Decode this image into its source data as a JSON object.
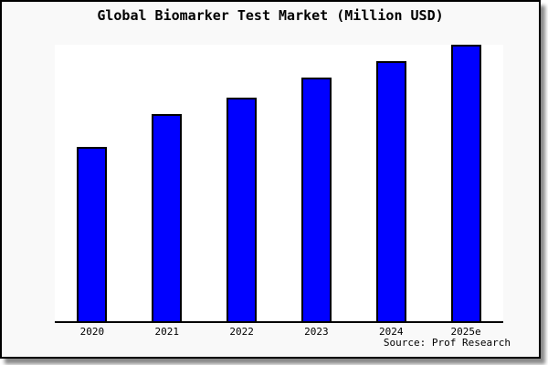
{
  "title": "Global Biomarker Test Market (Million USD)",
  "source": "Source: Prof Research",
  "colors": {
    "bar_fill": "#0000ff",
    "bar_border": "#000000",
    "figure_background": "#f9f9f9",
    "plot_background": "#ffffff",
    "frame": "#000000",
    "text": "#000000"
  },
  "chart_data": {
    "type": "bar",
    "title": "Global Biomarker Test Market (Million USD)",
    "categories": [
      "2020",
      "2021",
      "2022",
      "2023",
      "2024",
      "2025e"
    ],
    "values": [
      63,
      75,
      81,
      88,
      94,
      100
    ],
    "value_units": "relative index (y-axis unlabeled in chart; 2025e bar = 100)",
    "xlabel": "",
    "ylabel": "",
    "ylim": [
      0,
      100
    ],
    "grid": false,
    "legend": null,
    "annotations": [
      "Source: Prof Research"
    ]
  }
}
